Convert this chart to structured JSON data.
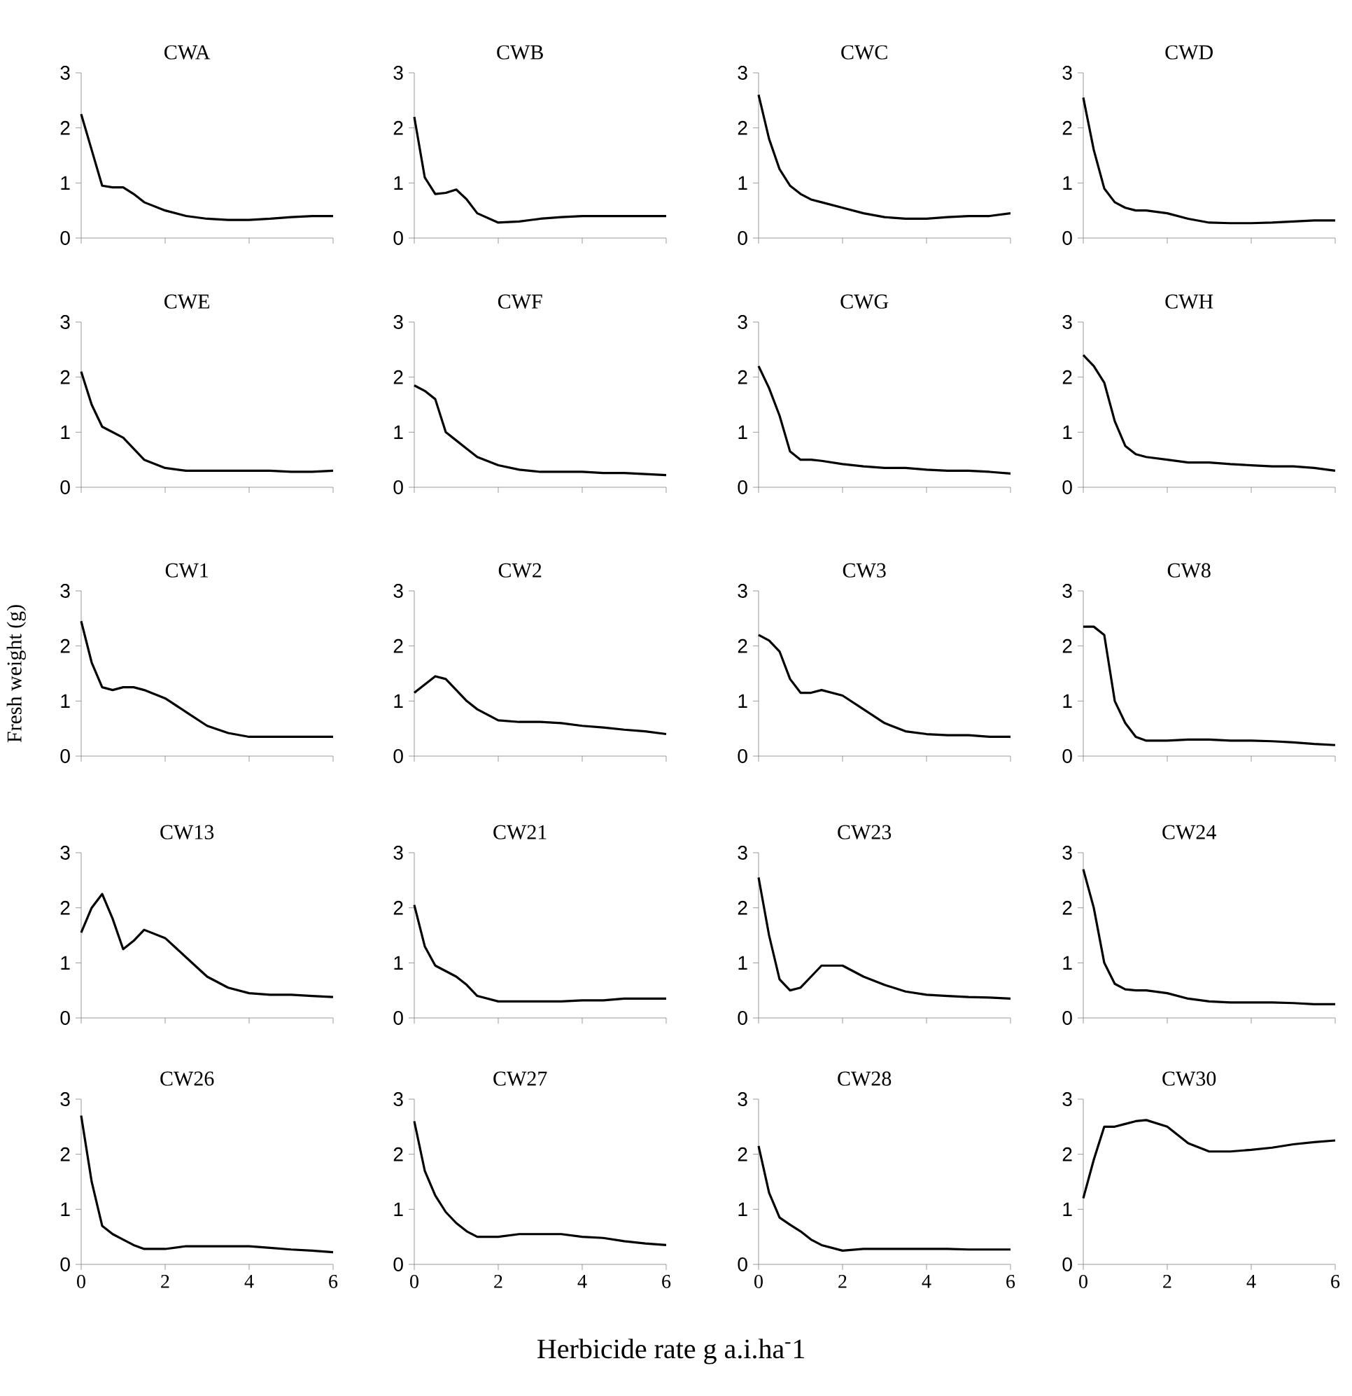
{
  "chart_data": [
    {
      "type": "line",
      "title": "CWA",
      "color": "#000000",
      "x": [
        0,
        0.25,
        0.5,
        0.75,
        1,
        1.25,
        1.5,
        2,
        2.5,
        3,
        3.5,
        4,
        4.5,
        5,
        5.5,
        6
      ],
      "values": [
        2.25,
        1.6,
        0.95,
        0.92,
        0.92,
        0.8,
        0.65,
        0.5,
        0.4,
        0.35,
        0.33,
        0.33,
        0.35,
        0.38,
        0.4,
        0.4
      ],
      "xlim": [
        0,
        6
      ],
      "ylim": [
        0,
        3
      ],
      "xticks": [
        0,
        2,
        4,
        6
      ],
      "yticks": [
        0,
        1,
        2,
        3
      ],
      "tick_labels": "y"
    },
    {
      "type": "line",
      "title": "CWB",
      "color": "#000000",
      "x": [
        0,
        0.25,
        0.5,
        0.75,
        1,
        1.25,
        1.5,
        2,
        2.5,
        3,
        3.5,
        4,
        4.5,
        5,
        5.5,
        6
      ],
      "values": [
        2.2,
        1.1,
        0.8,
        0.82,
        0.88,
        0.7,
        0.45,
        0.28,
        0.3,
        0.35,
        0.38,
        0.4,
        0.4,
        0.4,
        0.4,
        0.4
      ],
      "xlim": [
        0,
        6
      ],
      "ylim": [
        0,
        3
      ],
      "xticks": [
        0,
        2,
        4,
        6
      ],
      "yticks": [
        0,
        1,
        2,
        3
      ],
      "tick_labels": "y"
    },
    {
      "type": "line",
      "title": "CWC",
      "color": "#000000",
      "x": [
        0,
        0.25,
        0.5,
        0.75,
        1,
        1.25,
        1.5,
        2,
        2.5,
        3,
        3.5,
        4,
        4.5,
        5,
        5.5,
        6
      ],
      "values": [
        2.6,
        1.8,
        1.25,
        0.95,
        0.8,
        0.7,
        0.65,
        0.55,
        0.45,
        0.38,
        0.35,
        0.35,
        0.38,
        0.4,
        0.4,
        0.45
      ],
      "xlim": [
        0,
        6
      ],
      "ylim": [
        0,
        3
      ],
      "xticks": [
        0,
        2,
        4,
        6
      ],
      "yticks": [
        0,
        1,
        2,
        3
      ],
      "tick_labels": "y"
    },
    {
      "type": "line",
      "title": "CWD",
      "color": "#000000",
      "x": [
        0,
        0.25,
        0.5,
        0.75,
        1,
        1.25,
        1.5,
        2,
        2.5,
        3,
        3.5,
        4,
        4.5,
        5,
        5.5,
        6
      ],
      "values": [
        2.55,
        1.6,
        0.9,
        0.65,
        0.55,
        0.5,
        0.5,
        0.45,
        0.35,
        0.28,
        0.27,
        0.27,
        0.28,
        0.3,
        0.32,
        0.32
      ],
      "xlim": [
        0,
        6
      ],
      "ylim": [
        0,
        3
      ],
      "xticks": [
        0,
        2,
        4,
        6
      ],
      "yticks": [
        0,
        1,
        2,
        3
      ],
      "tick_labels": "y"
    },
    {
      "type": "line",
      "title": "CWE",
      "color": "#000000",
      "x": [
        0,
        0.25,
        0.5,
        0.75,
        1,
        1.25,
        1.5,
        2,
        2.5,
        3,
        3.5,
        4,
        4.5,
        5,
        5.5,
        6
      ],
      "values": [
        2.1,
        1.5,
        1.1,
        1.0,
        0.9,
        0.7,
        0.5,
        0.35,
        0.3,
        0.3,
        0.3,
        0.3,
        0.3,
        0.28,
        0.28,
        0.3
      ],
      "xlim": [
        0,
        6
      ],
      "ylim": [
        0,
        3
      ],
      "xticks": [
        0,
        2,
        4,
        6
      ],
      "yticks": [
        0,
        1,
        2,
        3
      ],
      "tick_labels": "y"
    },
    {
      "type": "line",
      "title": "CWF",
      "color": "#000000",
      "x": [
        0,
        0.25,
        0.5,
        0.75,
        1,
        1.25,
        1.5,
        2,
        2.5,
        3,
        3.5,
        4,
        4.5,
        5,
        5.5,
        6
      ],
      "values": [
        1.85,
        1.75,
        1.6,
        1.0,
        0.85,
        0.7,
        0.55,
        0.4,
        0.32,
        0.28,
        0.28,
        0.28,
        0.26,
        0.26,
        0.24,
        0.22
      ],
      "xlim": [
        0,
        6
      ],
      "ylim": [
        0,
        3
      ],
      "xticks": [
        0,
        2,
        4,
        6
      ],
      "yticks": [
        0,
        1,
        2,
        3
      ],
      "tick_labels": "y"
    },
    {
      "type": "line",
      "title": "CWG",
      "color": "#000000",
      "x": [
        0,
        0.25,
        0.5,
        0.75,
        1,
        1.25,
        1.5,
        2,
        2.5,
        3,
        3.5,
        4,
        4.5,
        5,
        5.5,
        6
      ],
      "values": [
        2.2,
        1.8,
        1.3,
        0.65,
        0.5,
        0.5,
        0.48,
        0.42,
        0.38,
        0.35,
        0.35,
        0.32,
        0.3,
        0.3,
        0.28,
        0.25
      ],
      "xlim": [
        0,
        6
      ],
      "ylim": [
        0,
        3
      ],
      "xticks": [
        0,
        2,
        4,
        6
      ],
      "yticks": [
        0,
        1,
        2,
        3
      ],
      "tick_labels": "y"
    },
    {
      "type": "line",
      "title": "CWH",
      "color": "#000000",
      "x": [
        0,
        0.25,
        0.5,
        0.75,
        1,
        1.25,
        1.5,
        2,
        2.5,
        3,
        3.5,
        4,
        4.5,
        5,
        5.5,
        6
      ],
      "values": [
        2.4,
        2.2,
        1.9,
        1.2,
        0.75,
        0.6,
        0.55,
        0.5,
        0.45,
        0.45,
        0.42,
        0.4,
        0.38,
        0.38,
        0.35,
        0.3
      ],
      "xlim": [
        0,
        6
      ],
      "ylim": [
        0,
        3
      ],
      "xticks": [
        0,
        2,
        4,
        6
      ],
      "yticks": [
        0,
        1,
        2,
        3
      ],
      "tick_labels": "y"
    },
    {
      "type": "line",
      "title": "CW1",
      "ylabel": "Fresh weight (g)",
      "color": "#000000",
      "x": [
        0,
        0.25,
        0.5,
        0.75,
        1,
        1.25,
        1.5,
        2,
        2.5,
        3,
        3.5,
        4,
        4.5,
        5,
        5.5,
        6
      ],
      "values": [
        2.45,
        1.7,
        1.25,
        1.2,
        1.25,
        1.25,
        1.2,
        1.05,
        0.8,
        0.55,
        0.42,
        0.35,
        0.35,
        0.35,
        0.35,
        0.35
      ],
      "xlim": [
        0,
        6
      ],
      "ylim": [
        0,
        3
      ],
      "xticks": [
        0,
        2,
        4,
        6
      ],
      "yticks": [
        0,
        1,
        2,
        3
      ],
      "tick_labels": "y"
    },
    {
      "type": "line",
      "title": "CW2",
      "color": "#000000",
      "x": [
        0,
        0.25,
        0.5,
        0.75,
        1,
        1.25,
        1.5,
        2,
        2.5,
        3,
        3.5,
        4,
        4.5,
        5,
        5.5,
        6
      ],
      "values": [
        1.15,
        1.3,
        1.45,
        1.4,
        1.2,
        1.0,
        0.85,
        0.65,
        0.62,
        0.62,
        0.6,
        0.55,
        0.52,
        0.48,
        0.45,
        0.4
      ],
      "xlim": [
        0,
        6
      ],
      "ylim": [
        0,
        3
      ],
      "xticks": [
        0,
        2,
        4,
        6
      ],
      "yticks": [
        0,
        1,
        2,
        3
      ],
      "tick_labels": "y"
    },
    {
      "type": "line",
      "title": "CW3",
      "color": "#000000",
      "x": [
        0,
        0.25,
        0.5,
        0.75,
        1,
        1.25,
        1.5,
        2,
        2.5,
        3,
        3.5,
        4,
        4.5,
        5,
        5.5,
        6
      ],
      "values": [
        2.2,
        2.1,
        1.9,
        1.4,
        1.15,
        1.15,
        1.2,
        1.1,
        0.85,
        0.6,
        0.45,
        0.4,
        0.38,
        0.38,
        0.35,
        0.35
      ],
      "xlim": [
        0,
        6
      ],
      "ylim": [
        0,
        3
      ],
      "xticks": [
        0,
        2,
        4,
        6
      ],
      "yticks": [
        0,
        1,
        2,
        3
      ],
      "tick_labels": "y"
    },
    {
      "type": "line",
      "title": "CW8",
      "color": "#000000",
      "x": [
        0,
        0.25,
        0.5,
        0.75,
        1,
        1.25,
        1.5,
        2,
        2.5,
        3,
        3.5,
        4,
        4.5,
        5,
        5.5,
        6
      ],
      "values": [
        2.35,
        2.35,
        2.2,
        1.0,
        0.6,
        0.35,
        0.28,
        0.28,
        0.3,
        0.3,
        0.28,
        0.28,
        0.27,
        0.25,
        0.22,
        0.2
      ],
      "xlim": [
        0,
        6
      ],
      "ylim": [
        0,
        3
      ],
      "xticks": [
        0,
        2,
        4,
        6
      ],
      "yticks": [
        0,
        1,
        2,
        3
      ],
      "tick_labels": "y"
    },
    {
      "type": "line",
      "title": "CW13",
      "color": "#000000",
      "x": [
        0,
        0.25,
        0.5,
        0.75,
        1,
        1.25,
        1.5,
        2,
        2.5,
        3,
        3.5,
        4,
        4.5,
        5,
        5.5,
        6
      ],
      "values": [
        1.55,
        2.0,
        2.25,
        1.8,
        1.25,
        1.4,
        1.6,
        1.45,
        1.1,
        0.75,
        0.55,
        0.45,
        0.42,
        0.42,
        0.4,
        0.38
      ],
      "xlim": [
        0,
        6
      ],
      "ylim": [
        0,
        3
      ],
      "xticks": [
        0,
        2,
        4,
        6
      ],
      "yticks": [
        0,
        1,
        2,
        3
      ],
      "tick_labels": "y"
    },
    {
      "type": "line",
      "title": "CW21",
      "color": "#000000",
      "x": [
        0,
        0.25,
        0.5,
        0.75,
        1,
        1.25,
        1.5,
        2,
        2.5,
        3,
        3.5,
        4,
        4.5,
        5,
        5.5,
        6
      ],
      "values": [
        2.05,
        1.3,
        0.95,
        0.85,
        0.75,
        0.6,
        0.4,
        0.3,
        0.3,
        0.3,
        0.3,
        0.32,
        0.32,
        0.35,
        0.35,
        0.35
      ],
      "xlim": [
        0,
        6
      ],
      "ylim": [
        0,
        3
      ],
      "xticks": [
        0,
        2,
        4,
        6
      ],
      "yticks": [
        0,
        1,
        2,
        3
      ],
      "tick_labels": "y"
    },
    {
      "type": "line",
      "title": "CW23",
      "color": "#000000",
      "x": [
        0,
        0.25,
        0.5,
        0.75,
        1,
        1.25,
        1.5,
        2,
        2.5,
        3,
        3.5,
        4,
        4.5,
        5,
        5.5,
        6
      ],
      "values": [
        2.55,
        1.5,
        0.7,
        0.5,
        0.55,
        0.75,
        0.95,
        0.95,
        0.75,
        0.6,
        0.48,
        0.42,
        0.4,
        0.38,
        0.37,
        0.35
      ],
      "xlim": [
        0,
        6
      ],
      "ylim": [
        0,
        3
      ],
      "xticks": [
        0,
        2,
        4,
        6
      ],
      "yticks": [
        0,
        1,
        2,
        3
      ],
      "tick_labels": "y"
    },
    {
      "type": "line",
      "title": "CW24",
      "color": "#000000",
      "x": [
        0,
        0.25,
        0.5,
        0.75,
        1,
        1.25,
        1.5,
        2,
        2.5,
        3,
        3.5,
        4,
        4.5,
        5,
        5.5,
        6
      ],
      "values": [
        2.7,
        2.0,
        1.0,
        0.62,
        0.52,
        0.5,
        0.5,
        0.45,
        0.35,
        0.3,
        0.28,
        0.28,
        0.28,
        0.27,
        0.25,
        0.25
      ],
      "xlim": [
        0,
        6
      ],
      "ylim": [
        0,
        3
      ],
      "xticks": [
        0,
        2,
        4,
        6
      ],
      "yticks": [
        0,
        1,
        2,
        3
      ],
      "tick_labels": "y"
    },
    {
      "type": "line",
      "title": "CW26",
      "color": "#000000",
      "x": [
        0,
        0.25,
        0.5,
        0.75,
        1,
        1.25,
        1.5,
        2,
        2.5,
        3,
        3.5,
        4,
        4.5,
        5,
        5.5,
        6
      ],
      "values": [
        2.7,
        1.5,
        0.7,
        0.55,
        0.45,
        0.35,
        0.28,
        0.28,
        0.33,
        0.33,
        0.33,
        0.33,
        0.3,
        0.27,
        0.25,
        0.22
      ],
      "xlim": [
        0,
        6
      ],
      "ylim": [
        0,
        3
      ],
      "xticks": [
        0,
        2,
        4,
        6
      ],
      "yticks": [
        0,
        1,
        2,
        3
      ]
    },
    {
      "type": "line",
      "title": "CW27",
      "xlabel": "Herbicide rate g a.i.ha$^{-}$1",
      "color": "#000000",
      "x": [
        0,
        0.25,
        0.5,
        0.75,
        1,
        1.25,
        1.5,
        2,
        2.5,
        3,
        3.5,
        4,
        4.5,
        5,
        5.5,
        6
      ],
      "values": [
        2.6,
        1.7,
        1.25,
        0.95,
        0.75,
        0.6,
        0.5,
        0.5,
        0.55,
        0.55,
        0.55,
        0.5,
        0.48,
        0.42,
        0.38,
        0.35
      ],
      "xlim": [
        0,
        6
      ],
      "ylim": [
        0,
        3
      ],
      "xticks": [
        0,
        2,
        4,
        6
      ],
      "yticks": [
        0,
        1,
        2,
        3
      ]
    },
    {
      "type": "line",
      "title": "CW28",
      "color": "#000000",
      "x": [
        0,
        0.25,
        0.5,
        0.75,
        1,
        1.25,
        1.5,
        2,
        2.5,
        3,
        3.5,
        4,
        4.5,
        5,
        5.5,
        6
      ],
      "values": [
        2.15,
        1.3,
        0.85,
        0.72,
        0.6,
        0.45,
        0.35,
        0.25,
        0.28,
        0.28,
        0.28,
        0.28,
        0.28,
        0.27,
        0.27,
        0.27
      ],
      "xlim": [
        0,
        6
      ],
      "ylim": [
        0,
        3
      ],
      "xticks": [
        0,
        2,
        4,
        6
      ],
      "yticks": [
        0,
        1,
        2,
        3
      ]
    },
    {
      "type": "line",
      "title": "CW30",
      "color": "#000000",
      "x": [
        0,
        0.25,
        0.5,
        0.75,
        1,
        1.25,
        1.5,
        2,
        2.5,
        3,
        3.5,
        4,
        4.5,
        5,
        5.5,
        6
      ],
      "values": [
        1.2,
        1.9,
        2.5,
        2.5,
        2.55,
        2.6,
        2.62,
        2.5,
        2.2,
        2.05,
        2.05,
        2.08,
        2.12,
        2.18,
        2.22,
        2.25
      ],
      "xlim": [
        0,
        6
      ],
      "ylim": [
        0,
        3
      ],
      "xticks": [
        0,
        2,
        4,
        6
      ],
      "yticks": [
        0,
        1,
        2,
        3
      ]
    }
  ]
}
